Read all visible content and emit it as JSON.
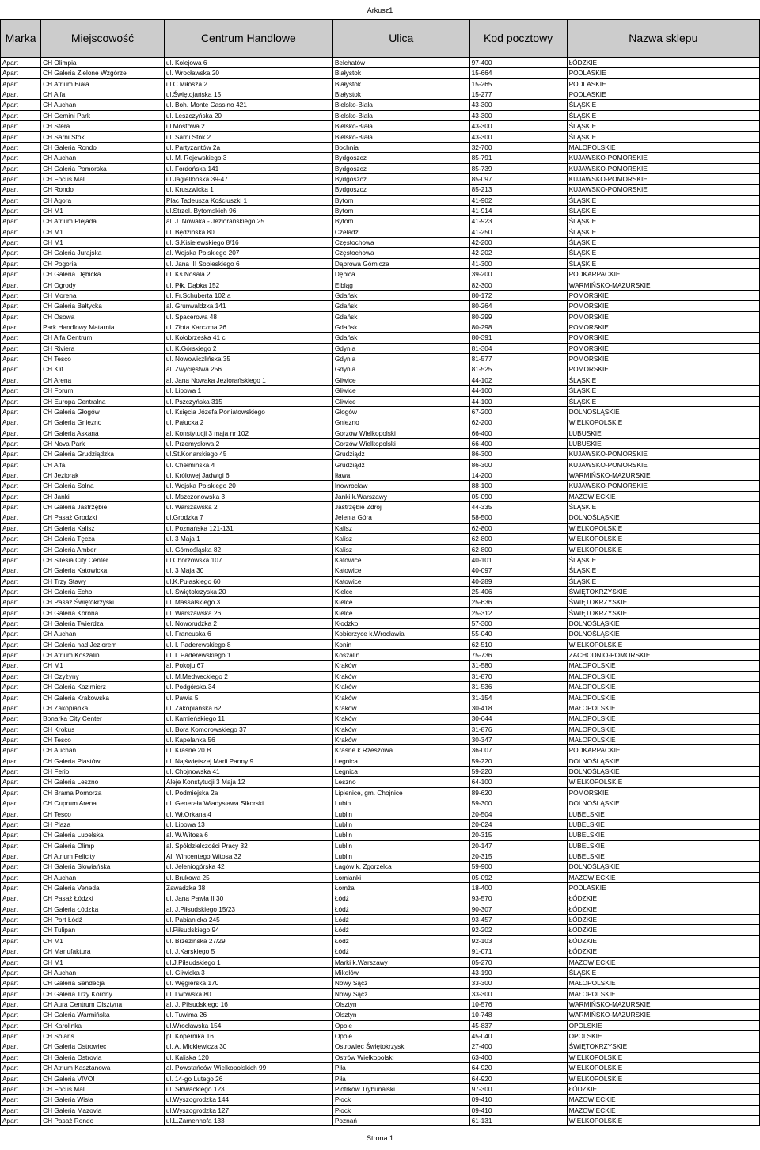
{
  "sheet_name": "Arkusz1",
  "page_number": "Strona 1",
  "columns": [
    "Marka",
    "Miejscowość",
    "Centrum Handlowe",
    "Ulica",
    "Kod pocztowy",
    "Nazwa sklepu"
  ],
  "rows": [
    [
      "Apart",
      "CH Olimpia",
      "ul. Kolejowa 6",
      "Bełchatów",
      "97-400",
      "ŁÓDZKIE"
    ],
    [
      "Apart",
      "CH Galeria Zielone Wzgórze",
      "ul. Wrocławska 20",
      "Białystok",
      "15-664",
      "PODLASKIE"
    ],
    [
      "Apart",
      "CH Atrium Biała",
      "ul.C.Miłosza 2",
      "Białystok",
      "15-265",
      "PODLASKIE"
    ],
    [
      "Apart",
      "CH Alfa",
      "ul.Świętojańska 15",
      "Białystok",
      "15-277",
      "PODLASKIE"
    ],
    [
      "Apart",
      "CH Auchan",
      "ul. Boh. Monte Cassino 421",
      "Bielsko-Biała",
      "43-300",
      "ŚLĄSKIE"
    ],
    [
      "Apart",
      "CH Gemini Park",
      "ul. Leszczyńska 20",
      "Bielsko-Biała",
      "43-300",
      "ŚLĄSKIE"
    ],
    [
      "Apart",
      "CH Sfera",
      "ul.Mostowa 2",
      "Bielsko-Biała",
      "43-300",
      "ŚLĄSKIE"
    ],
    [
      "Apart",
      "CH Sarni Stok",
      "ul. Sarni Stok 2",
      "Bielsko-Biała",
      "43-300",
      "ŚLĄSKIE"
    ],
    [
      "Apart",
      "CH Galeria Rondo",
      "ul. Partyzantów 2a",
      "Bochnia",
      "32-700",
      "MAŁOPOLSKIE"
    ],
    [
      "Apart",
      "CH Auchan",
      "ul. M. Rejewskiego 3",
      "Bydgoszcz",
      "85-791",
      "KUJAWSKO-POMORSKIE"
    ],
    [
      "Apart",
      "CH Galeria Pomorska",
      "ul. Fordońska 141",
      "Bydgoszcz",
      "85-739",
      "KUJAWSKO-POMORSKIE"
    ],
    [
      "Apart",
      "CH Focus Mall",
      "ul.Jagiellońska 39-47",
      "Bydgoszcz",
      "85-097",
      "KUJAWSKO-POMORSKIE"
    ],
    [
      "Apart",
      "CH Rondo",
      "ul. Kruszwicka 1",
      "Bydgoszcz",
      "85-213",
      "KUJAWSKO-POMORSKIE"
    ],
    [
      "Apart",
      "CH Agora",
      "Plac Tadeusza Kościuszki 1",
      "Bytom",
      "41-902",
      "ŚLĄSKIE"
    ],
    [
      "Apart",
      "CH M1",
      "ul.Strzel. Bytomskich 96",
      "Bytom",
      "41-914",
      "ŚLĄSKIE"
    ],
    [
      "Apart",
      "CH Atrium Plejada",
      "al. J. Nowaka - Jeziorańskiego 25",
      "Bytom",
      "41-923",
      "ŚLĄSKIE"
    ],
    [
      "Apart",
      "CH M1",
      "ul. Będzińska 80",
      "Czeladź",
      "41-250",
      "ŚLĄSKIE"
    ],
    [
      "Apart",
      "CH M1",
      "ul. S.Kisielewskiego 8/16",
      "Częstochowa",
      "42-200",
      "ŚLĄSKIE"
    ],
    [
      "Apart",
      "CH Galeria Jurajska",
      "al. Wojska Polskiego 207",
      "Częstochowa",
      "42-202",
      "ŚLĄSKIE"
    ],
    [
      "Apart",
      "CH Pogoria",
      "ul. Jana III Sobieskiego 6",
      "Dąbrowa Górnicza",
      "41-300",
      "ŚLĄSKIE"
    ],
    [
      "Apart",
      "CH Galeria Dębicka",
      "ul. Ks.Nosala 2",
      "Dębica",
      "39-200",
      "PODKARPACKIE"
    ],
    [
      "Apart",
      "CH Ogrody",
      "ul. Płk. Dąbka 152",
      "Elbląg",
      "82-300",
      "WARMIŃSKO-MAZURSKIE"
    ],
    [
      "Apart",
      "CH Morena",
      "ul. Fr.Schuberta 102 a",
      "Gdańsk",
      "80-172",
      "POMORSKIE"
    ],
    [
      "Apart",
      "CH Galeria Bałtycka",
      "al. Grunwaldzka 141",
      "Gdańsk",
      "80-264",
      "POMORSKIE"
    ],
    [
      "Apart",
      "CH Osowa",
      "ul. Spacerowa 48",
      "Gdańsk",
      "80-299",
      "POMORSKIE"
    ],
    [
      "Apart",
      "Park Handlowy Matarnia",
      "ul. Złota Karczma 26",
      "Gdańsk",
      "80-298",
      "POMORSKIE"
    ],
    [
      "Apart",
      "CH Alfa Centrum",
      "ul. Kołobrzeska 41 c",
      "Gdańsk",
      "80-391",
      "POMORSKIE"
    ],
    [
      "Apart",
      "CH Riviera",
      "ul. K.Górskiego 2",
      "Gdynia",
      "81-304",
      "POMORSKIE"
    ],
    [
      "Apart",
      "CH Tesco",
      "ul. Nowowiczlińska 35",
      "Gdynia",
      "81-577",
      "POMORSKIE"
    ],
    [
      "Apart",
      "CH Klif",
      "al. Zwycięstwa 256",
      "Gdynia",
      "81-525",
      "POMORSKIE"
    ],
    [
      "Apart",
      "CH Arena",
      "al. Jana Nowaka Jeziorańskiego 1",
      "Gliwice",
      "44-102",
      "ŚLĄSKIE"
    ],
    [
      "Apart",
      "CH Forum",
      "ul. Lipowa 1",
      "Gliwice",
      "44-100",
      "ŚLĄSKIE"
    ],
    [
      "Apart",
      "CH Europa Centralna",
      "ul. Pszczyńska 315",
      "Gliwice",
      "44-100",
      "ŚLĄSKIE"
    ],
    [
      "Apart",
      "CH Galeria Głogów",
      "ul. Księcia Józefa Poniatowskiego",
      "Głogów",
      "67-200",
      "DOLNOŚLĄSKIE"
    ],
    [
      "Apart",
      "CH Galeria Gniezno",
      "ul. Pałucka 2",
      "Gniezno",
      "62-200",
      "WIELKOPOLSKIE"
    ],
    [
      "Apart",
      "CH Galeria Askana",
      "al. Konstytucji 3 maja nr 102",
      "Gorzów Wielkopolski",
      "66-400",
      "LUBUSKIE"
    ],
    [
      "Apart",
      "CH Nova Park",
      "ul. Przemysłowa 2",
      "Gorzów Wielkopolski",
      "66-400",
      "LUBUSKIE"
    ],
    [
      "Apart",
      "CH Galeria Grudziądzka",
      "ul.St.Konarskiego 45",
      "Grudziądz",
      "86-300",
      "KUJAWSKO-POMORSKIE"
    ],
    [
      "Apart",
      "CH Alfa",
      "ul. Chełmińska 4",
      "Grudziądz",
      "86-300",
      "KUJAWSKO-POMORSKIE"
    ],
    [
      "Apart",
      "CH Jeziorak",
      "ul. Królowej Jadwigi 6",
      "Iława",
      "14-200",
      "WARMIŃSKO-MAZURSKIE"
    ],
    [
      "Apart",
      "CH Galeria Solna",
      "ul. Wojska Polskiego 20",
      "Inowrocław",
      "88-100",
      "KUJAWSKO-POMORSKIE"
    ],
    [
      "Apart",
      "CH Janki",
      "ul. Mszczonowska 3",
      "Janki k.Warszawy",
      "05-090",
      "MAZOWIECKIE"
    ],
    [
      "Apart",
      "CH Galeria Jastrzębie",
      "ul. Warszawska 2",
      "Jastrzębie Zdrój",
      "44-335",
      "ŚLĄSKIE"
    ],
    [
      "Apart",
      "CH Pasaż Grodzki",
      "ul.Grodzka 7",
      "Jelenia Góra",
      "58-500",
      "DOLNOŚLĄSKIE"
    ],
    [
      "Apart",
      "CH Galeria Kalisz",
      "ul. Poznańska 121-131",
      "Kalisz",
      "62-800",
      "WIELKOPOLSKIE"
    ],
    [
      "Apart",
      "CH Galeria Tęcza",
      "ul. 3 Maja 1",
      "Kalisz",
      "62-800",
      "WIELKOPOLSKIE"
    ],
    [
      "Apart",
      "CH Galeria Amber",
      "ul. Górnośląska 82",
      "Kalisz",
      "62-800",
      "WIELKOPOLSKIE"
    ],
    [
      "Apart",
      "CH Silesia City Center",
      "ul.Chorzowska 107",
      "Katowice",
      "40-101",
      "ŚLĄSKIE"
    ],
    [
      "Apart",
      "CH Galeria Katowicka",
      "ul. 3 Maja 30",
      "Katowice",
      "40-097",
      "ŚLĄSKIE"
    ],
    [
      "Apart",
      "CH Trzy Stawy",
      "ul.K.Pułaskiego 60",
      "Katowice",
      "40-289",
      "ŚLĄSKIE"
    ],
    [
      "Apart",
      "CH Galeria Echo",
      "ul. Świętokrzyska 20",
      "Kielce",
      "25-406",
      "ŚWIĘTOKRZYSKIE"
    ],
    [
      "Apart",
      "CH Pasaż Świętokrzyski",
      "ul. Massalskiego 3",
      "Kielce",
      "25-636",
      "ŚWIĘTOKRZYSKIE"
    ],
    [
      "Apart",
      "CH Galeria Korona",
      "ul. Warszawska 26",
      "Kielce",
      "25-312",
      "ŚWIĘTOKRZYSKIE"
    ],
    [
      "Apart",
      "CH Galeria Twierdza",
      "ul. Noworudzka 2",
      "Kłodzko",
      "57-300",
      "DOLNOŚLĄSKIE"
    ],
    [
      "Apart",
      "CH Auchan",
      "ul. Francuska 6",
      "Kobierzyce k.Wrocławia",
      "55-040",
      "DOLNOŚLĄSKIE"
    ],
    [
      "Apart",
      "CH Galeria nad Jeziorem",
      "ul. I. Paderewskiego 8",
      "Konin",
      "62-510",
      "WIELKOPOLSKIE"
    ],
    [
      "Apart",
      "CH Atrium Koszalin",
      "ul. I. Paderewskiego 1",
      "Koszalin",
      "75-736",
      "ZACHODNIO-POMORSKIE"
    ],
    [
      "Apart",
      "CH M1",
      "al. Pokoju 67",
      "Kraków",
      "31-580",
      "MAŁOPOLSKIE"
    ],
    [
      "Apart",
      "CH Czyżyny",
      "ul. M.Medweckiego 2",
      "Kraków",
      "31-870",
      "MAŁOPOLSKIE"
    ],
    [
      "Apart",
      "CH Galeria Kazimierz",
      "ul. Podgórska 34",
      "Kraków",
      "31-536",
      "MAŁOPOLSKIE"
    ],
    [
      "Apart",
      "CH Galeria Krakowska",
      "ul. Pawia 5",
      "Kraków",
      "31-154",
      "MAŁOPOLSKIE"
    ],
    [
      "Apart",
      "CH Zakopianka",
      "ul. Zakopiańska 62",
      "Kraków",
      "30-418",
      "MAŁOPOLSKIE"
    ],
    [
      "Apart",
      "Bonarka City Center",
      "ul. Kamieńskiego 11",
      "Kraków",
      "30-644",
      "MAŁOPOLSKIE"
    ],
    [
      "Apart",
      "CH Krokus",
      "ul. Bora Komorowskiego 37",
      "Kraków",
      "31-876",
      "MAŁOPOLSKIE"
    ],
    [
      "Apart",
      "CH Tesco",
      "ul. Kapelanka 56",
      "Kraków",
      "30-347",
      "MAŁOPOLSKIE"
    ],
    [
      "Apart",
      "CH Auchan",
      "ul. Krasne 20 B",
      "Krasne k.Rzeszowa",
      "36-007",
      "PODKARPACKIE"
    ],
    [
      "Apart",
      "CH Galeria Piastów",
      "ul. Najświętszej Marii Panny 9",
      "Legnica",
      "59-220",
      "DOLNOŚLĄSKIE"
    ],
    [
      "Apart",
      "CH Ferio",
      "ul. Chojnowska 41",
      "Legnica",
      "59-220",
      "DOLNOŚLĄSKIE"
    ],
    [
      "Apart",
      "CH Galeria Leszno",
      "Aleje Konstytucji 3 Maja 12",
      "Leszno",
      "64-100",
      "WIELKOPOLSKIE"
    ],
    [
      "Apart",
      "CH Brama Pomorza",
      "ul. Podmiejska 2a",
      "Lipienice, gm. Chojnice",
      "89-620",
      "POMORSKIE"
    ],
    [
      "Apart",
      "CH Cuprum Arena",
      "ul. Generała Władysława Sikorski",
      "Lubin",
      "59-300",
      "DOLNOŚLĄSKIE"
    ],
    [
      "Apart",
      "CH Tesco",
      "ul. Wł.Orkana 4",
      "Lublin",
      "20-504",
      "LUBELSKIE"
    ],
    [
      "Apart",
      "CH Plaza",
      "ul. Lipowa 13",
      "Lublin",
      "20-024",
      "LUBELSKIE"
    ],
    [
      "Apart",
      "CH Galeria Lubelska",
      "al. W.Witosa 6",
      "Lublin",
      "20-315",
      "LUBELSKIE"
    ],
    [
      "Apart",
      "CH Galeria Olimp",
      "al. Spółdzielczości Pracy 32",
      "Lublin",
      "20-147",
      "LUBELSKIE"
    ],
    [
      "Apart",
      "CH Atrium Felicity",
      "Al. Wincentego Witosa 32",
      "Lublin",
      "20-315",
      "LUBELSKIE"
    ],
    [
      "Apart",
      "CH Galeria Słowiańska",
      "ul. Jeleniogórska 42",
      "Łagów k. Zgorzelca",
      "59-900",
      "DOLNOŚLĄSKIE"
    ],
    [
      "Apart",
      "CH Auchan",
      "ul. Brukowa 25",
      "Łomianki",
      "05-092",
      "MAZOWIECKIE"
    ],
    [
      "Apart",
      "CH Galeria Veneda",
      "Zawadzka 38",
      "Łomża",
      "18-400",
      "PODLASKIE"
    ],
    [
      "Apart",
      "CH Pasaż Łódzki",
      "ul. Jana Pawła II 30",
      "Łódź",
      "93-570",
      "ŁÓDZKIE"
    ],
    [
      "Apart",
      "CH Galeria Łódzka",
      "al. J.Piłsudskiego 15/23",
      "Łódź",
      "90-307",
      "ŁÓDZKIE"
    ],
    [
      "Apart",
      "CH Port Łódź",
      "ul. Pabianicka 245",
      "Łódź",
      "93-457",
      "ŁÓDZKIE"
    ],
    [
      "Apart",
      "CH Tulipan",
      "ul.Piłsudskiego 94",
      "Łódź",
      "92-202",
      "ŁÓDZKIE"
    ],
    [
      "Apart",
      "CH M1",
      "ul. Brzezińska 27/29",
      "Łódź",
      "92-103",
      "ŁÓDZKIE"
    ],
    [
      "Apart",
      "CH Manufaktura",
      "ul. J.Karskiego 5",
      "Łódź",
      "91-071",
      "ŁÓDZKIE"
    ],
    [
      "Apart",
      "CH M1",
      "ul.J.Piłsudskiego 1",
      "Marki k.Warszawy",
      "05-270",
      "MAZOWIECKIE"
    ],
    [
      "Apart",
      "CH Auchan",
      "ul. Gliwicka 3",
      "Mikołów",
      "43-190",
      "ŚLĄSKIE"
    ],
    [
      "Apart",
      "CH Galeria Sandecja",
      "ul. Węgierska 170",
      "Nowy Sącz",
      "33-300",
      "MAŁOPOLSKIE"
    ],
    [
      "Apart",
      "CH Galeria Trzy Korony",
      "ul. Lwowska 80",
      "Nowy Sącz",
      "33-300",
      "MAŁOPOLSKIE"
    ],
    [
      "Apart",
      "CH Aura Centrum Olsztyna",
      "al. J. Piłsudskiego 16",
      "Olsztyn",
      "10-576",
      "WARMIŃSKO-MAZURSKIE"
    ],
    [
      "Apart",
      "CH Galeria Warmińska",
      "ul. Tuwima 26",
      "Olsztyn",
      "10-748",
      "WARMIŃSKO-MAZURSKIE"
    ],
    [
      "Apart",
      "CH Karolinka",
      "ul.Wrocławska 154",
      "Opole",
      "45-837",
      "OPOLSKIE"
    ],
    [
      "Apart",
      "CH Solaris",
      "pl. Kopernika 16",
      "Opole",
      "45-040",
      "OPOLSKIE"
    ],
    [
      "Apart",
      "CH Galeria Ostrowiec",
      "ul. A. Mickiewicza 30",
      "Ostrowiec Świętokrzyski",
      "27-400",
      "ŚWIĘTOKRZYSKIE"
    ],
    [
      "Apart",
      "CH Galeria Ostrovia",
      "ul. Kaliska 120",
      "Ostrów Wielkopolski",
      "63-400",
      "WIELKOPOLSKIE"
    ],
    [
      "Apart",
      "CH Atrium Kasztanowa",
      "al. Powstańców Wielkopolskich 99",
      "Piła",
      "64-920",
      "WIELKOPOLSKIE"
    ],
    [
      "Apart",
      "CH Galeria VIVO!",
      "ul. 14-go Lutego 26",
      "Piła",
      "64-920",
      "WIELKOPOLSKIE"
    ],
    [
      "Apart",
      "CH Focus Mall",
      "ul. Słowackiego 123",
      "Piotrków Trybunalski",
      "97-300",
      "ŁÓDZKIE"
    ],
    [
      "Apart",
      "CH Galeria Wisła",
      "ul.Wyszogrodzka 144",
      "Płock",
      "09-410",
      "MAZOWIECKIE"
    ],
    [
      "Apart",
      "CH Galeria Mazovia",
      "ul.Wyszogrodzka 127",
      "Płock",
      "09-410",
      "MAZOWIECKIE"
    ],
    [
      "Apart",
      "CH Pasaż Rondo",
      "ul.L.Zamenhofa 133",
      "Poznań",
      "61-131",
      "WIELKOPOLSKIE"
    ]
  ]
}
